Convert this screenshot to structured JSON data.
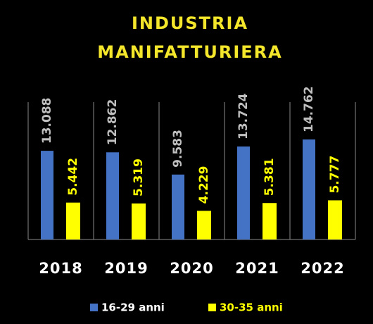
{
  "chart_data": {
    "type": "bar",
    "title": [
      "INDUSTRIA",
      "MANIFATTURIERA"
    ],
    "categories": [
      "2018",
      "2019",
      "2020",
      "2021",
      "2022"
    ],
    "series": [
      {
        "name": "16-29 anni",
        "color": "#4472c4",
        "values": [
          13088,
          12862,
          9583,
          13724,
          14762
        ],
        "value_labels": [
          "13.088",
          "12.862",
          "9.583",
          "13.724",
          "14.762"
        ]
      },
      {
        "name": "30-35 anni",
        "color": "#ffff00",
        "values": [
          5442,
          5319,
          4229,
          5381,
          5777
        ],
        "value_labels": [
          "5.442",
          "5.319",
          "4.229",
          "5.381",
          "5.777"
        ]
      }
    ],
    "legend": "bottom"
  }
}
